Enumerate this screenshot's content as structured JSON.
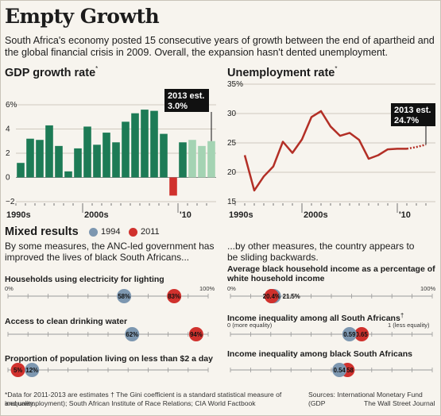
{
  "title": "Empty Growth",
  "dek": "South Africa's economy posted 15 consecutive years of growth between the end of apartheid and the global financial crisis in 2009. Overall, the expansion hasn't dented unemployment.",
  "colors": {
    "green": "#1d7b56",
    "light_green": "#a4d3b3",
    "red": "#d0312d",
    "dark_red": "#b32f26",
    "blue": "#7d97b0"
  },
  "chart_data": [
    {
      "type": "bar",
      "title": "GDP growth rate",
      "title_mark": "*",
      "ylim": [
        -2,
        6
      ],
      "yticks": [
        -2,
        0,
        2,
        4,
        6
      ],
      "ytick_labels": [
        "−2",
        "0",
        "2",
        "4",
        "6%"
      ],
      "x": [
        1993,
        1994,
        1995,
        1996,
        1997,
        1998,
        1999,
        2000,
        2001,
        2002,
        2003,
        2004,
        2005,
        2006,
        2007,
        2008,
        2009,
        2010,
        2011,
        2012,
        2013
      ],
      "values": [
        1.2,
        3.2,
        3.1,
        4.3,
        2.6,
        0.5,
        2.4,
        4.2,
        2.7,
        3.7,
        2.9,
        4.6,
        5.3,
        5.6,
        5.5,
        3.6,
        -1.5,
        2.9,
        3.1,
        2.6,
        3.0
      ],
      "estimate_from": 2011,
      "xtick_labels": [
        "1990s",
        "2000s",
        "'10"
      ],
      "annotation": {
        "line1": "2013 est.",
        "line2": "3.0%"
      }
    },
    {
      "type": "line",
      "title": "Unemployment rate",
      "title_mark": "*",
      "ylim": [
        15,
        35
      ],
      "yticks": [
        15,
        20,
        25,
        30,
        35
      ],
      "ytick_labels": [
        "15",
        "20",
        "25",
        "30",
        "35%"
      ],
      "x": [
        1994,
        1995,
        1996,
        1997,
        1998,
        1999,
        2000,
        2001,
        2002,
        2003,
        2004,
        2005,
        2006,
        2007,
        2008,
        2009,
        2010,
        2011,
        2012,
        2013
      ],
      "values": [
        22.9,
        16.9,
        19.3,
        21.0,
        25.2,
        23.3,
        25.6,
        29.4,
        30.4,
        27.8,
        26.2,
        26.7,
        25.5,
        22.3,
        22.9,
        23.9,
        24.0,
        24.0,
        24.3,
        24.7
      ],
      "estimate_from": 2011,
      "xtick_labels": [
        "1990s",
        "2000s",
        "'10"
      ],
      "annotation": {
        "line1": "2013 est.",
        "line2": "24.7%"
      }
    },
    {
      "type": "dot",
      "section": "Mixed results",
      "legend": [
        "1994",
        "2011"
      ],
      "left_intro": "By some measures, the ANC-led government has improved the lives of black South Africans...",
      "right_intro": "...by other measures, the country appears to be sliding backwards.",
      "left_indicators": [
        {
          "label": "Households using electricity for lighting",
          "v1994": 58,
          "v2011": 83,
          "l1994": "58%",
          "l2011": "83%",
          "scale_min": "0%",
          "scale_max": "100%"
        },
        {
          "label": "Access to clean drinking water",
          "v1994": 62,
          "v2011": 94,
          "l1994": "62%",
          "l2011": "94%"
        },
        {
          "label": "Proportion of population living on less than $2 a day",
          "v1994": 12,
          "v2011": 5,
          "l1994": "12%",
          "l2011": "5%"
        }
      ],
      "right_indicators": [
        {
          "label": "Average black household income as a percentage of white household income",
          "v1994": 21.5,
          "v2011": 20.4,
          "l1994": "21.5%",
          "l2011": "20.4%",
          "scale_min": "0%",
          "scale_max": "100%"
        },
        {
          "label": "Income inequality among all South Africans",
          "label_mark": "†",
          "v1994": 0.59,
          "v2011": 0.65,
          "l1994": "0.59",
          "l2011": "0.65",
          "scale_min": "0 (more equality)",
          "scale_max": "1 (less equality)"
        },
        {
          "label": "Income inequality among black South Africans",
          "v1994": 0.54,
          "v2011": 0.58,
          "l1994": "0.54",
          "l2011": "0.58"
        }
      ]
    }
  ],
  "footnote": {
    "left": "*Data for 2011-2013 are estimates  † The Gini coefficient is a standard statistical measure of inequality.",
    "left2": "and unemployment); South African Institute of Race Relations; CIA World Factbook",
    "right": "Sources: International Monetary Fund (GDP",
    "right2": "The Wall Street Journal"
  }
}
